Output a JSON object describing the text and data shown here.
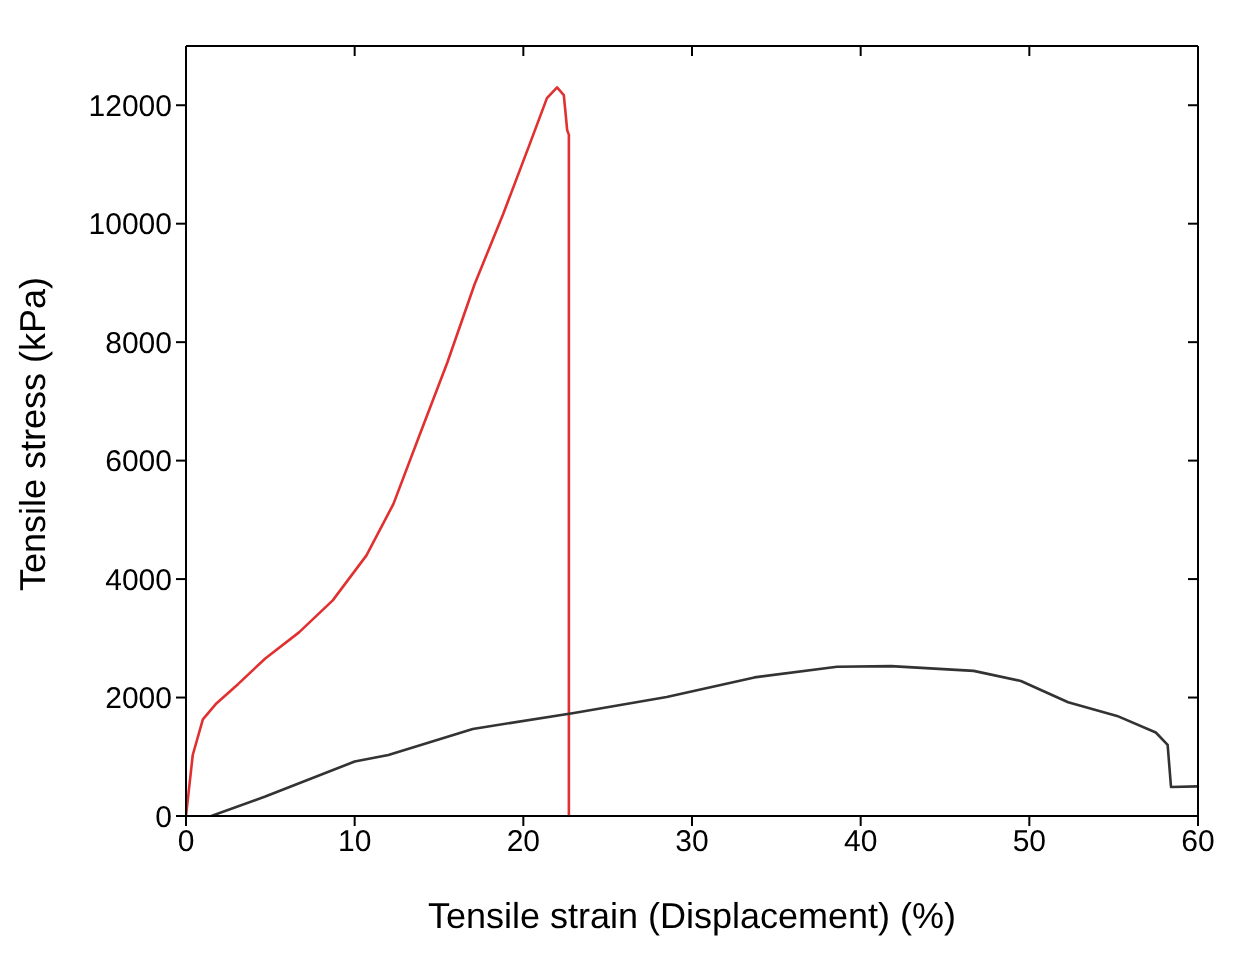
{
  "chart_data": {
    "type": "line",
    "xlabel": "Tensile strain (Displacement) (%)",
    "ylabel": "Tensile stress (kPa)",
    "xlim": [
      0,
      60
    ],
    "xticks": [
      0,
      10,
      20,
      30,
      40,
      50,
      60
    ],
    "ylim": [
      0,
      13000
    ],
    "yticks": [
      0,
      2000,
      4000,
      6000,
      8000,
      10000,
      12000
    ],
    "marker": "none",
    "line_style": "solid",
    "series": [
      {
        "color": "#e03030",
        "x": [
          0,
          0.4,
          1.0,
          1.8,
          3.1,
          4.7,
          6.7,
          8.7,
          10.7,
          12.3,
          13.9,
          15.5,
          17.1,
          18.8,
          20.4,
          21.4,
          22.0,
          22.4,
          22.6,
          22.7,
          22.7
        ],
        "values": [
          0,
          1030,
          1630,
          1900,
          2230,
          2660,
          3100,
          3640,
          4400,
          5270,
          6470,
          7660,
          8970,
          10160,
          11360,
          12120,
          12300,
          12170,
          11580,
          11500,
          0
        ]
      },
      {
        "color": "#333333",
        "x": [
          1.5,
          4.7,
          10.0,
          12.0,
          17.0,
          23.0,
          28.5,
          33.7,
          38.6,
          41.8,
          46.7,
          49.5,
          52.3,
          55.2,
          57.5,
          58.2,
          58.4,
          60
        ],
        "values": [
          0,
          330,
          920,
          1030,
          1470,
          1740,
          2010,
          2340,
          2520,
          2530,
          2450,
          2280,
          1920,
          1690,
          1410,
          1200,
          490,
          500
        ]
      }
    ]
  }
}
